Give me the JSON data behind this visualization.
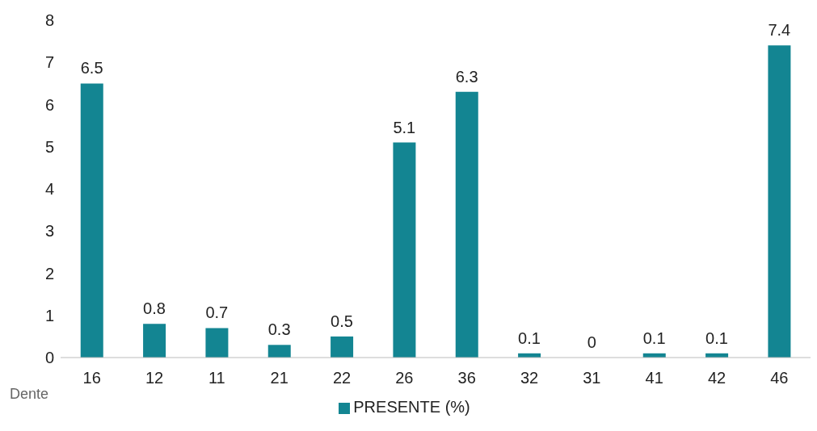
{
  "chart_data": {
    "type": "bar",
    "xlabel": "Dente",
    "categories": [
      "16",
      "12",
      "11",
      "21",
      "22",
      "26",
      "36",
      "32",
      "31",
      "41",
      "42",
      "46"
    ],
    "series": [
      {
        "name": "PRESENTE (%)",
        "color": "#138592",
        "values": [
          6.5,
          0.8,
          0.7,
          0.3,
          0.5,
          5.1,
          6.3,
          0.1,
          0,
          0.1,
          0.1,
          7.4
        ]
      }
    ],
    "ylim": [
      0,
      8
    ],
    "yticks": [
      0,
      1,
      2,
      3,
      4,
      5,
      6,
      7,
      8
    ],
    "grid": false,
    "legend": "bottom",
    "data_labels": true
  }
}
